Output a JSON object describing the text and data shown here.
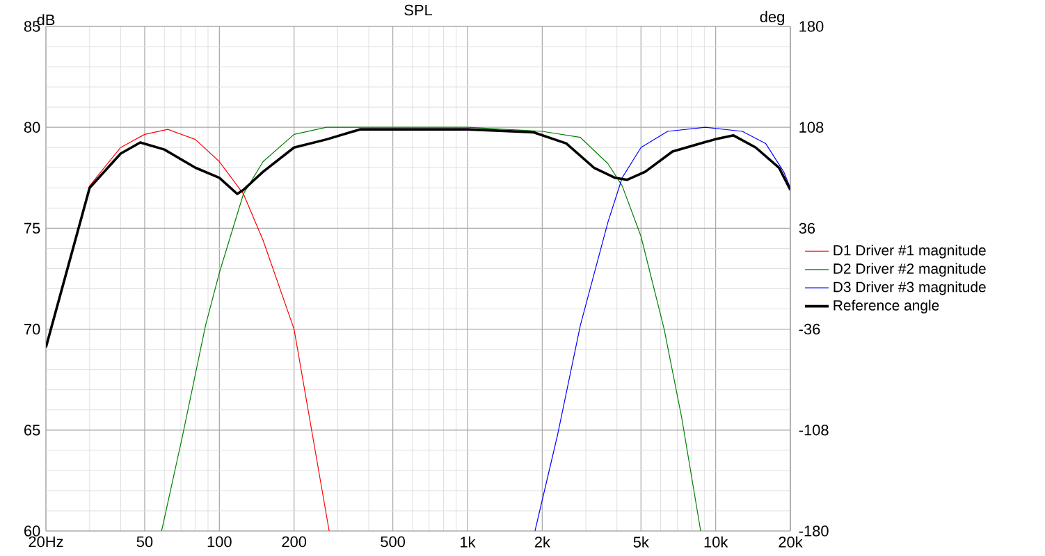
{
  "chart_data": {
    "type": "line",
    "title": "SPL",
    "ylabel": "dB",
    "y2label": "deg",
    "log": "x",
    "grid": true,
    "legend": "right",
    "marker": "none",
    "line_style": "solid",
    "xlim": [
      20,
      20000
    ],
    "ylim": [
      60,
      85
    ],
    "y2lim": [
      -180,
      180
    ],
    "xticks": [
      {
        "value": 20,
        "label": "20Hz"
      },
      50,
      100,
      200,
      500,
      {
        "value": 1000,
        "label": "1k"
      },
      {
        "value": 2000,
        "label": "2k"
      },
      {
        "value": 5000,
        "label": "5k"
      },
      {
        "value": 10000,
        "label": "10k"
      },
      {
        "value": 20000,
        "label": "20k"
      }
    ],
    "yticks": [
      60,
      65,
      70,
      75,
      80,
      85
    ],
    "y2ticks": [
      -180,
      -108,
      -36,
      36,
      108,
      180
    ],
    "series": [
      {
        "name": "D1 Driver #1 magnitude",
        "color": "#ff0000",
        "x": [
          20,
          30,
          40,
          50,
          62,
          80,
          100,
          125,
          150,
          200,
          277
        ],
        "values": [
          69.1,
          77.1,
          79.0,
          79.65,
          79.9,
          79.4,
          78.3,
          76.7,
          74.4,
          70.0,
          60.0
        ]
      },
      {
        "name": "D2 Driver #2 magnitude",
        "color": "#008000",
        "x": [
          58.5,
          71,
          88,
          100,
          125,
          150,
          200,
          270,
          500,
          1000,
          2000,
          2850,
          3680,
          4200,
          5000,
          6200,
          7300,
          8700
        ],
        "values": [
          60.0,
          64.7,
          70.2,
          72.8,
          76.7,
          78.3,
          79.65,
          80.0,
          80.0,
          80.0,
          79.8,
          79.5,
          78.2,
          77.1,
          74.6,
          70.0,
          65.6,
          60.0
        ]
      },
      {
        "name": "D3 Driver #3 magnitude",
        "color": "#0000ff",
        "x": [
          1870,
          2300,
          2850,
          3680,
          4200,
          5000,
          6400,
          9100,
          12800,
          15900,
          18800,
          20000
        ],
        "values": [
          60.0,
          64.7,
          70.2,
          75.3,
          77.5,
          79.0,
          79.8,
          80.0,
          79.8,
          79.2,
          77.8,
          77.0
        ]
      },
      {
        "name": "Reference angle",
        "color": "#000000",
        "x": [
          20,
          30,
          40,
          48,
          60,
          80,
          100,
          118,
          125,
          150,
          200,
          270,
          370,
          1000,
          1850,
          2500,
          3230,
          3930,
          4400,
          5200,
          6700,
          9900,
          11800,
          14500,
          18000,
          20000
        ],
        "values": [
          69.1,
          77.0,
          78.7,
          79.25,
          78.9,
          78.0,
          77.5,
          76.7,
          76.9,
          77.8,
          79.0,
          79.4,
          79.9,
          79.9,
          79.75,
          79.2,
          78.0,
          77.5,
          77.4,
          77.8,
          78.8,
          79.4,
          79.6,
          79.0,
          78.0,
          76.9
        ]
      }
    ]
  }
}
